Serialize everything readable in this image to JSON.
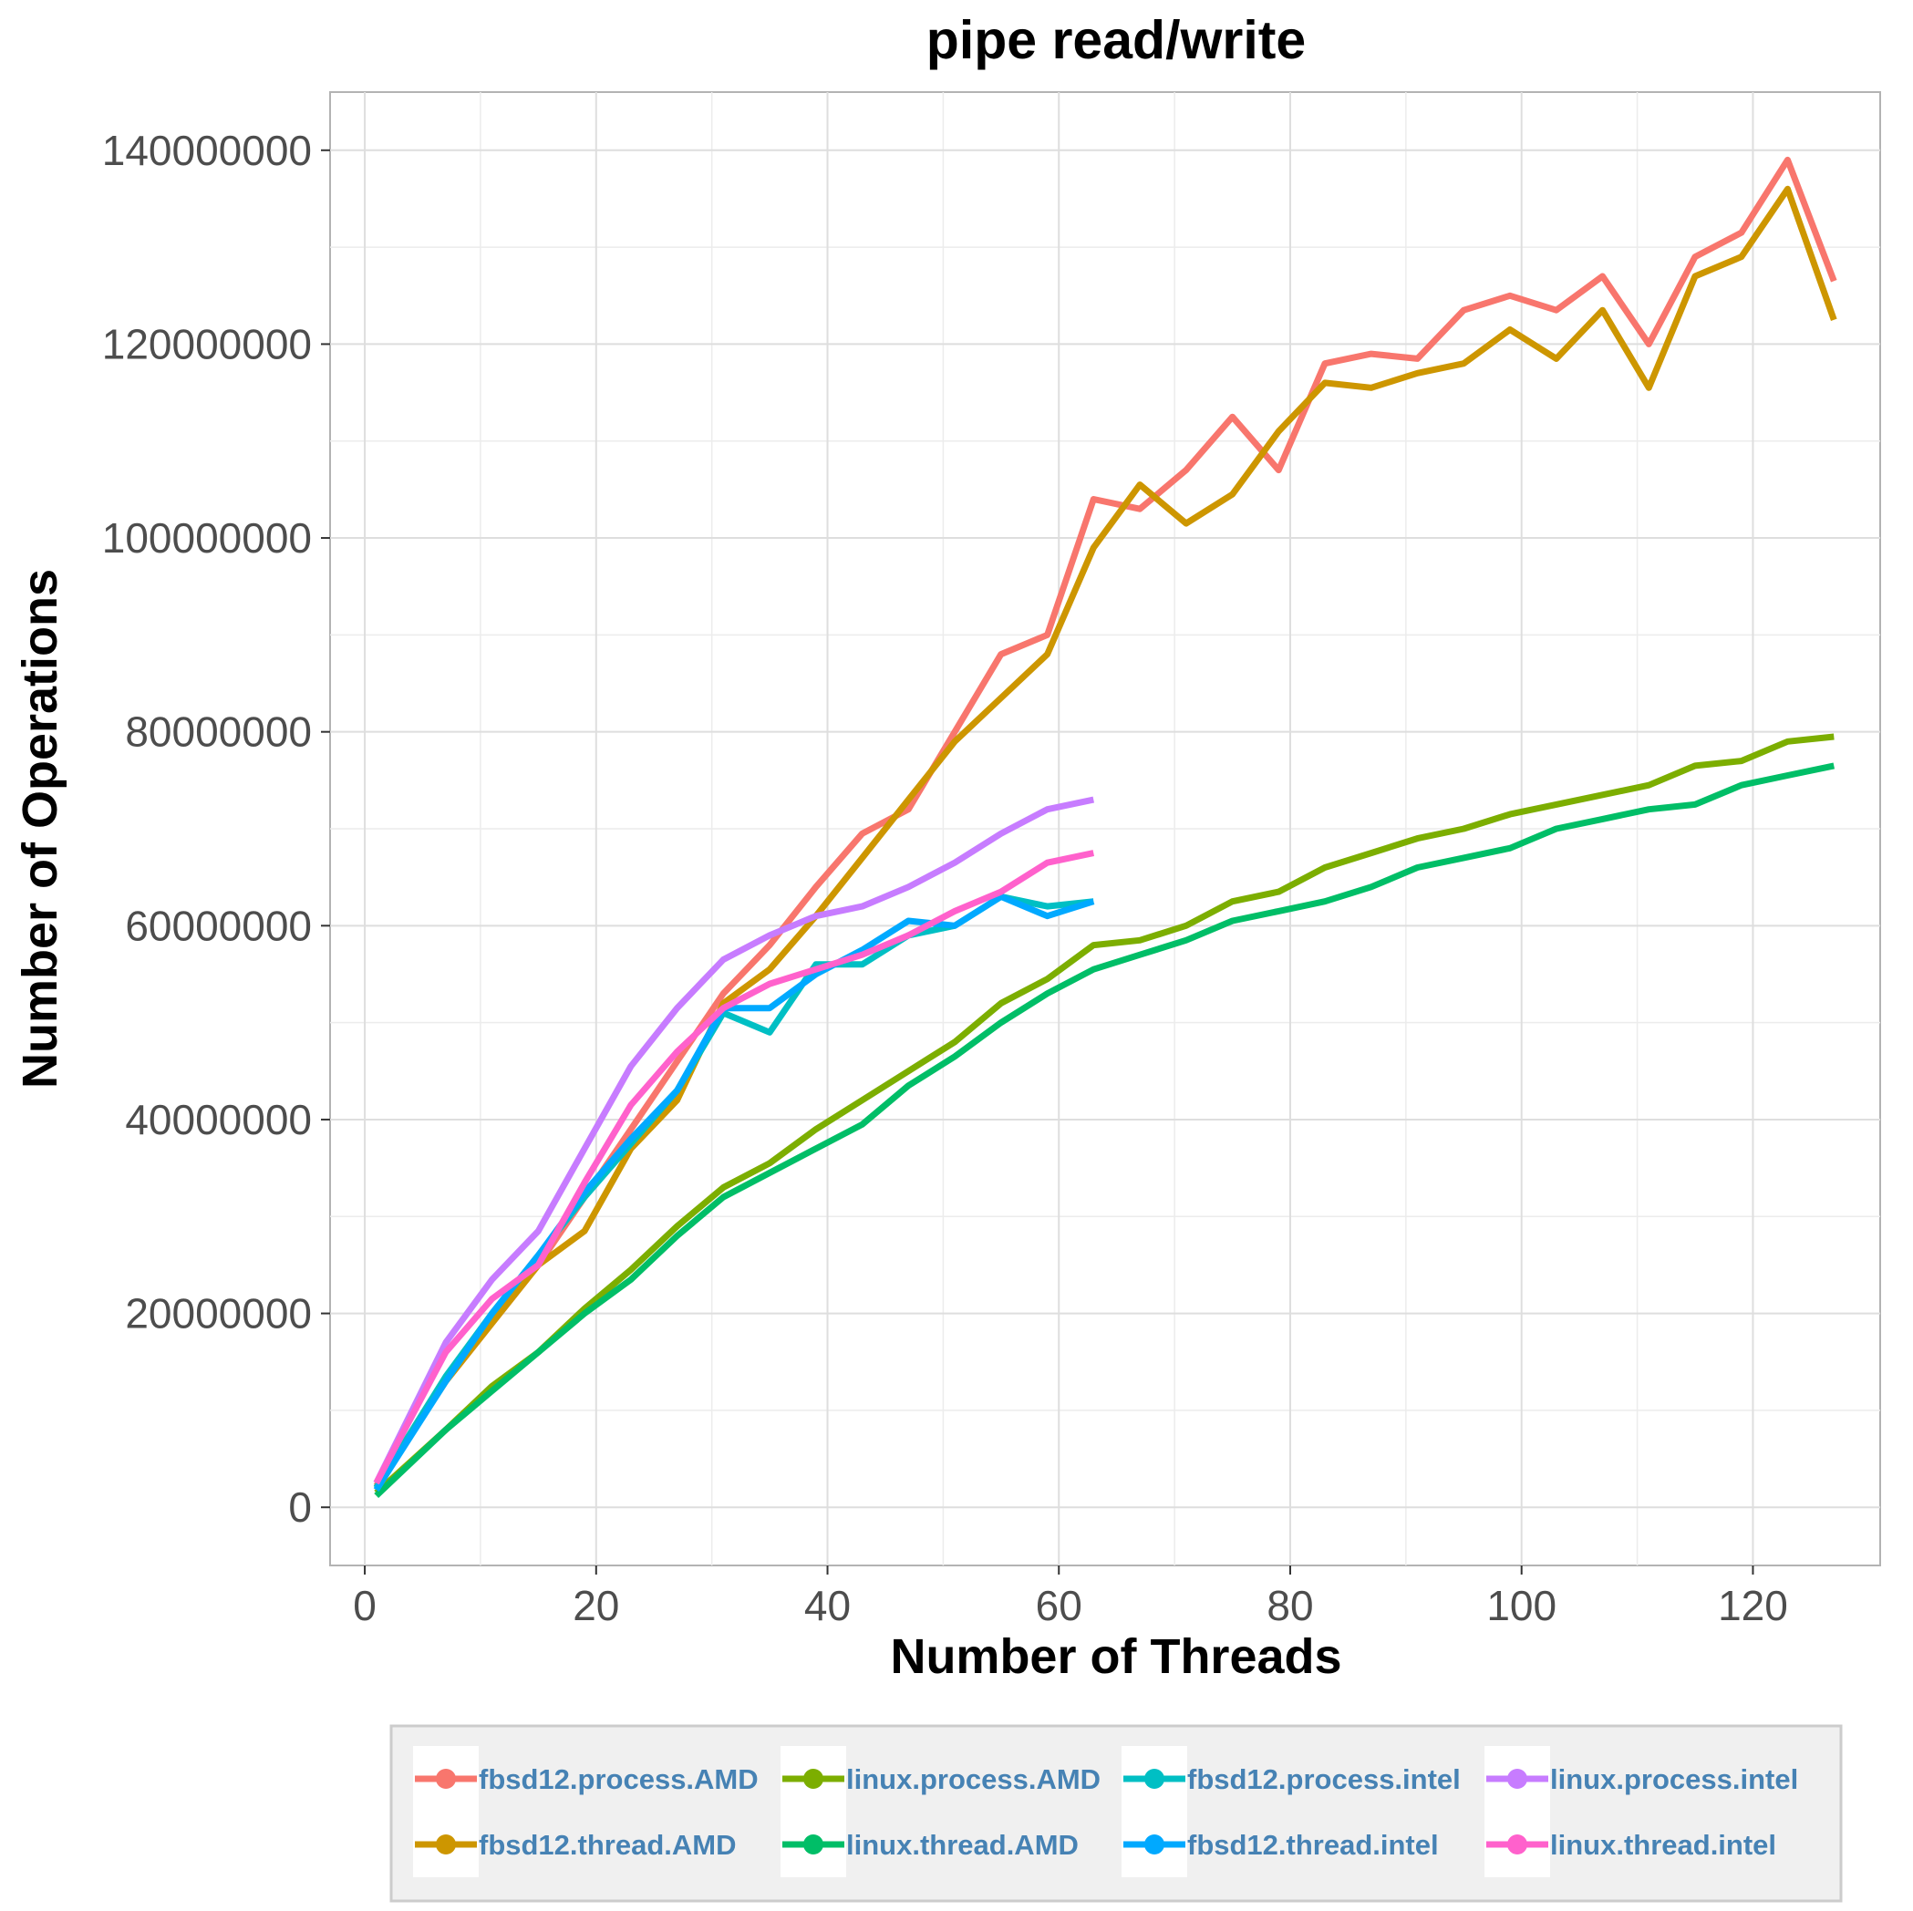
{
  "chart_data": {
    "type": "line",
    "title": "pipe read/write",
    "xlabel": "Number of Threads",
    "ylabel": "Number of Operations",
    "xlim": [
      -3,
      131
    ],
    "ylim": [
      -6000000,
      146000000
    ],
    "x_ticks": [
      0,
      20,
      40,
      60,
      80,
      100,
      120
    ],
    "x_tick_labels": [
      "0",
      "20",
      "40",
      "60",
      "80",
      "100",
      "120"
    ],
    "y_ticks": [
      0,
      20000000,
      40000000,
      60000000,
      80000000,
      100000000,
      120000000,
      140000000
    ],
    "y_tick_labels": [
      "0",
      "20000000",
      "40000000",
      "60000000",
      "80000000",
      "100000000",
      "120000000",
      "140000000"
    ],
    "grid": true,
    "legend_position": "bottom",
    "series": [
      {
        "name": "fbsd12.process.AMD",
        "color": "#F8766D",
        "x": [
          1,
          7,
          11,
          15,
          19,
          23,
          27,
          31,
          35,
          39,
          43,
          47,
          51,
          55,
          59,
          63,
          67,
          71,
          75,
          79,
          83,
          87,
          91,
          95,
          99,
          103,
          107,
          111,
          115,
          119,
          123,
          127
        ],
        "values": [
          2200000,
          13000000,
          19000000,
          25000000,
          32000000,
          39000000,
          46000000,
          53000000,
          58000000,
          64000000,
          69500000,
          72000000,
          80000000,
          88000000,
          90000000,
          104000000,
          103000000,
          107000000,
          112500000,
          107000000,
          118000000,
          119000000,
          118500000,
          123500000,
          125000000,
          123500000,
          127000000,
          120000000,
          129000000,
          131500000,
          139000000,
          126500000
        ]
      },
      {
        "name": "fbsd12.thread.AMD",
        "color": "#CD9600",
        "x": [
          1,
          7,
          11,
          15,
          19,
          23,
          27,
          31,
          35,
          39,
          43,
          47,
          51,
          55,
          59,
          63,
          67,
          71,
          75,
          79,
          83,
          87,
          91,
          95,
          99,
          103,
          107,
          111,
          115,
          119,
          123,
          127
        ],
        "values": [
          2000000,
          13000000,
          19000000,
          25000000,
          28500000,
          37000000,
          42000000,
          52000000,
          55500000,
          61000000,
          67000000,
          73000000,
          79000000,
          83500000,
          88000000,
          99000000,
          105500000,
          101500000,
          104500000,
          111000000,
          116000000,
          115500000,
          117000000,
          118000000,
          121500000,
          118500000,
          123500000,
          115500000,
          127000000,
          129000000,
          136000000,
          122500000
        ]
      },
      {
        "name": "linux.process.AMD",
        "color": "#7CAE00",
        "x": [
          1,
          7,
          11,
          15,
          19,
          23,
          27,
          31,
          35,
          39,
          43,
          47,
          51,
          55,
          59,
          63,
          67,
          71,
          75,
          79,
          83,
          87,
          91,
          95,
          99,
          103,
          107,
          111,
          115,
          119,
          123,
          127
        ],
        "values": [
          1500000,
          8000000,
          12500000,
          16000000,
          20500000,
          24500000,
          29000000,
          33000000,
          35500000,
          39000000,
          42000000,
          45000000,
          48000000,
          52000000,
          54500000,
          58000000,
          58500000,
          60000000,
          62500000,
          63500000,
          66000000,
          67500000,
          69000000,
          70000000,
          71500000,
          72500000,
          73500000,
          74500000,
          76500000,
          77000000,
          79000000,
          79500000
        ]
      },
      {
        "name": "linux.thread.AMD",
        "color": "#00BE67",
        "x": [
          1,
          7,
          11,
          15,
          19,
          23,
          27,
          31,
          35,
          39,
          43,
          47,
          51,
          55,
          59,
          63,
          67,
          71,
          75,
          79,
          83,
          87,
          91,
          95,
          99,
          103,
          107,
          111,
          115,
          119,
          123,
          127
        ],
        "values": [
          1200000,
          8000000,
          12000000,
          16000000,
          20000000,
          23500000,
          28000000,
          32000000,
          34500000,
          37000000,
          39500000,
          43500000,
          46500000,
          50000000,
          53000000,
          55500000,
          57000000,
          58500000,
          60500000,
          61500000,
          62500000,
          64000000,
          66000000,
          67000000,
          68000000,
          70000000,
          71000000,
          72000000,
          72500000,
          74500000,
          75500000,
          76500000
        ]
      },
      {
        "name": "fbsd12.process.intel",
        "color": "#00BFC4",
        "x": [
          1,
          7,
          11,
          15,
          19,
          23,
          27,
          31,
          35,
          39,
          43,
          47,
          51,
          55,
          59,
          63
        ],
        "values": [
          2000000,
          13500000,
          20000000,
          26000000,
          32000000,
          37500000,
          43000000,
          51000000,
          49000000,
          56000000,
          56000000,
          59000000,
          60000000,
          63000000,
          62000000,
          62500000
        ]
      },
      {
        "name": "fbsd12.thread.intel",
        "color": "#00A9FF",
        "x": [
          1,
          7,
          11,
          15,
          19,
          23,
          27,
          31,
          35,
          39,
          43,
          47,
          51,
          55,
          59,
          63
        ],
        "values": [
          1800000,
          13000000,
          20000000,
          26000000,
          32500000,
          38000000,
          43000000,
          51500000,
          51500000,
          55000000,
          57500000,
          60500000,
          60000000,
          63000000,
          61000000,
          62500000
        ]
      },
      {
        "name": "linux.process.intel",
        "color": "#C77CFF",
        "x": [
          1,
          7,
          11,
          15,
          19,
          23,
          27,
          31,
          35,
          39,
          43,
          47,
          51,
          55,
          59,
          63
        ],
        "values": [
          2500000,
          17000000,
          23500000,
          28500000,
          37000000,
          45500000,
          51500000,
          56500000,
          59000000,
          61000000,
          62000000,
          64000000,
          66500000,
          69500000,
          72000000,
          73000000
        ]
      },
      {
        "name": "linux.thread.intel",
        "color": "#FF61CC",
        "x": [
          1,
          7,
          11,
          15,
          19,
          23,
          27,
          31,
          35,
          39,
          43,
          47,
          51,
          55,
          59,
          63
        ],
        "values": [
          2500000,
          16000000,
          21500000,
          25000000,
          33500000,
          41500000,
          47000000,
          51500000,
          54000000,
          55500000,
          57000000,
          59000000,
          61500000,
          63500000,
          66500000,
          67500000
        ]
      }
    ],
    "legend_order": [
      "fbsd12.process.AMD",
      "fbsd12.thread.AMD",
      "linux.process.AMD",
      "linux.thread.AMD",
      "fbsd12.process.intel",
      "fbsd12.thread.intel",
      "linux.process.intel",
      "linux.thread.intel"
    ]
  }
}
